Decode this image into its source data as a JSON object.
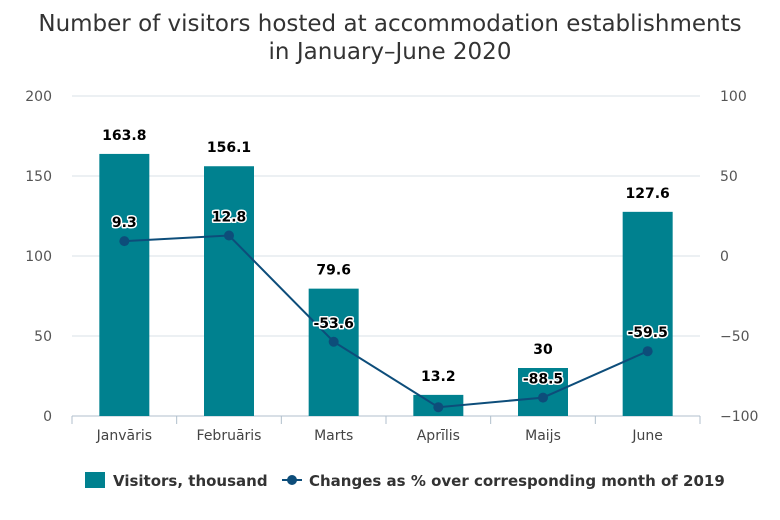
{
  "chart_data": {
    "type": "bar",
    "title_line1": "Number of visitors hosted at accommodation establishments",
    "title_line2": "in January–June 2020",
    "categories": [
      "Janvāris",
      "Februāris",
      "Marts",
      "Aprīlis",
      "Maijs",
      "June"
    ],
    "series": [
      {
        "name": "Visitors, thousand",
        "type": "bar",
        "axis": "left",
        "color": "#00818f",
        "values": [
          163.8,
          156.1,
          79.6,
          13.2,
          30,
          127.6
        ],
        "labels": [
          "163.8",
          "156.1",
          "79.6",
          "13.2",
          "30",
          "127.6"
        ]
      },
      {
        "name": "Changes as % over corresponding month of 2019",
        "type": "line",
        "axis": "right",
        "color": "#0d4d7a",
        "values": [
          9.3,
          12.8,
          -53.6,
          -94.5,
          -88.5,
          -59.5
        ],
        "labels": [
          "9.3",
          "12.8",
          "-53.6",
          "",
          "-88.5",
          "-59.5"
        ]
      }
    ],
    "left_axis": {
      "ylim": [
        0,
        200
      ],
      "ticks": [
        "0",
        "50",
        "100",
        "150",
        "200"
      ]
    },
    "right_axis": {
      "ylim": [
        -100,
        100
      ],
      "ticks": [
        "−100",
        "−50",
        "0",
        "50",
        "100"
      ]
    },
    "grid": true,
    "legend_position": "bottom"
  }
}
